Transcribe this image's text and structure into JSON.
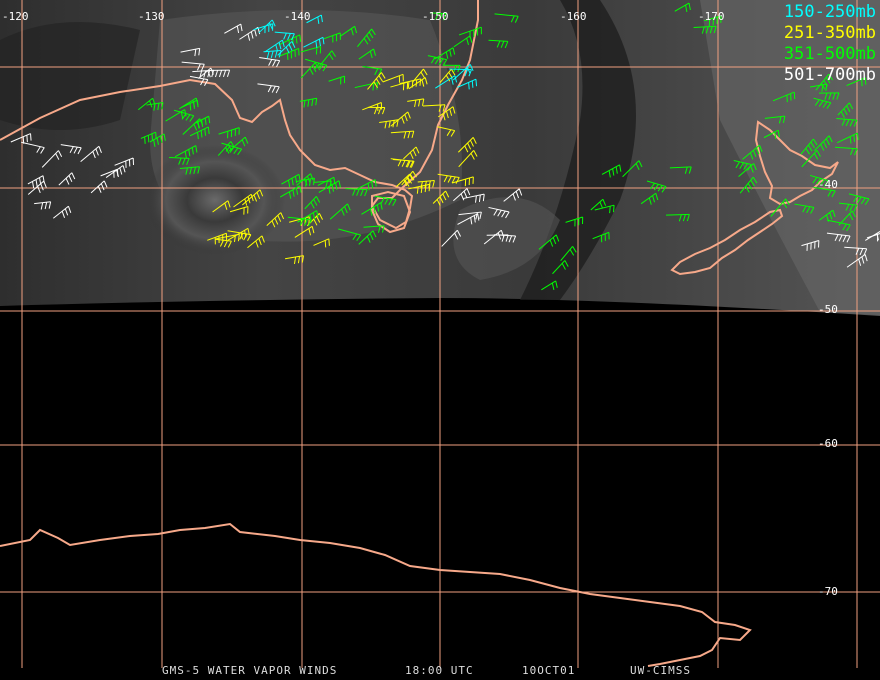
{
  "map": {
    "longitude_labels": [
      "-120",
      "-130",
      "-140",
      "-150",
      "-160",
      "-170"
    ],
    "latitude_labels": [
      "-40",
      "-50",
      "-60",
      "-70"
    ],
    "colors": {
      "grid": "#f0a080",
      "coast": "#f7a98a",
      "ocean": "#000000"
    }
  },
  "legend": [
    {
      "label": "150-250mb",
      "color": "#00ffff"
    },
    {
      "label": "251-350mb",
      "color": "#ffff00"
    },
    {
      "label": "351-500mb",
      "color": "#00ff00"
    },
    {
      "label": "501-700mb",
      "color": "#ffffff"
    }
  ],
  "footer": {
    "satellite": "GMS-5 WATER VAPOR WINDS",
    "time": "18:00 UTC",
    "date": "10OCT01",
    "source": "UW-CIMSS"
  }
}
